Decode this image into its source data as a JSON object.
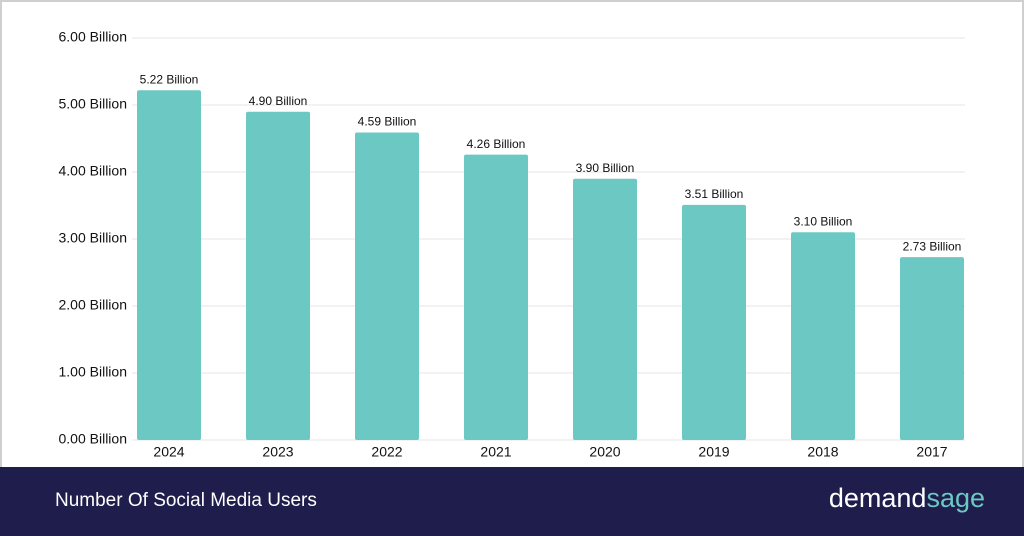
{
  "chart_data": {
    "type": "bar",
    "categories": [
      "2024",
      "2023",
      "2022",
      "2021",
      "2020",
      "2019",
      "2018",
      "2017"
    ],
    "values": [
      5.22,
      4.9,
      4.59,
      4.26,
      3.9,
      3.51,
      3.1,
      2.73
    ],
    "value_labels": [
      "5.22 Billion",
      "4.90 Billion",
      "4.59 Billion",
      "4.26 Billion",
      "3.90 Billion",
      "3.51 Billion",
      "3.10 Billion",
      "2.73 Billion"
    ],
    "color": "#6cc8c2",
    "ylim": [
      0,
      6
    ],
    "yticks": [
      {
        "value": 0,
        "label": "0.00 Billion"
      },
      {
        "value": 1,
        "label": "1.00 Billion"
      },
      {
        "value": 2,
        "label": "2.00 Billion"
      },
      {
        "value": 3,
        "label": "3.00 Billion"
      },
      {
        "value": 4,
        "label": "4.00 Billion"
      },
      {
        "value": 5,
        "label": "5.00 Billion"
      },
      {
        "value": 6,
        "label": "6.00 Billion"
      }
    ],
    "grid": true
  },
  "footer": {
    "title": "Number Of Social Media Users",
    "brand_part1": "demand",
    "brand_part2": "sage"
  }
}
